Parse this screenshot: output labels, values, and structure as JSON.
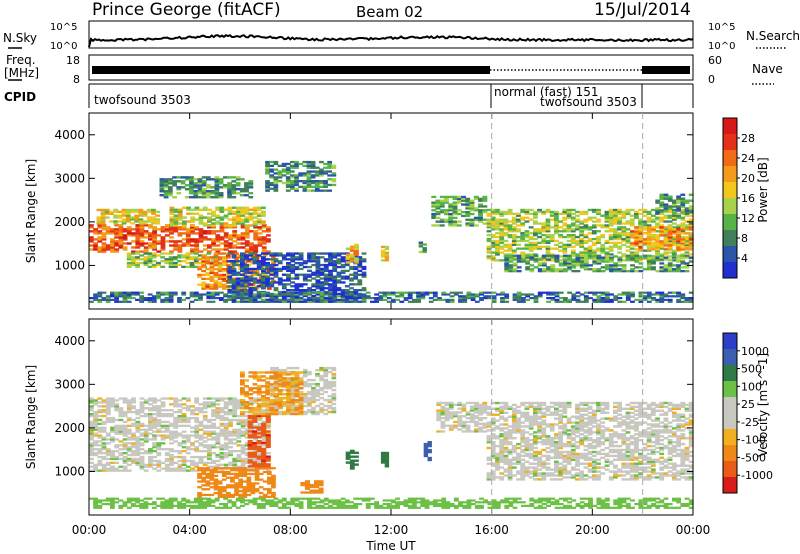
{
  "header": {
    "station": "Prince George (fitACF)",
    "beam": "Beam 02",
    "date": "15/Jul/2014"
  },
  "strip_panels": {
    "nsky": {
      "label": "N.Sky",
      "ticks": [
        "10^5",
        "10^0"
      ],
      "right_label": "N.Search",
      "right_ticks": [
        "10^5",
        "10^0"
      ]
    },
    "freq": {
      "label_line1": "Freq.",
      "label_line2": "[MHz]",
      "ticks": [
        "18",
        "8"
      ],
      "right_label": "Nave",
      "right_ticks": [
        "60",
        "0"
      ]
    },
    "cpid": {
      "label": "CPID",
      "segments": [
        {
          "start_hr": 0,
          "end_hr": 16,
          "label": "twofsound 3503"
        },
        {
          "start_hr": 16,
          "end_hr": 22,
          "label": "normal (fast) 151"
        },
        {
          "start_hr": 22,
          "end_hr": 24,
          "label": "twofsound 3503"
        }
      ]
    }
  },
  "colors": {
    "power_scale": [
      "#1f2fd0",
      "#2a55a8",
      "#3f7f5a",
      "#57b347",
      "#a6d34b",
      "#f2c61d",
      "#f39c1a",
      "#f06a18",
      "#e33018",
      "#d81818"
    ],
    "velocity_scale": [
      "#2b3fc8",
      "#3a5fb0",
      "#2f7a45",
      "#6cc046",
      "#c8c8c0",
      "#c8c8c0",
      "#f0b020",
      "#f08818",
      "#e85c18",
      "#d81c1c"
    ]
  },
  "chart_data": [
    {
      "type": "heatmap",
      "name": "power-panel",
      "ylabel": "Slant Range [km]",
      "yticks": [
        "1000",
        "2000",
        "3000",
        "4000"
      ],
      "ylim": [
        0,
        4500
      ],
      "xlim": [
        0,
        24
      ],
      "colorbar": {
        "label": "Power [dB]",
        "ticks": [
          "4",
          "8",
          "12",
          "16",
          "20",
          "24",
          "28"
        ],
        "range": [
          0,
          30
        ]
      },
      "blobs": [
        {
          "t0": 0.0,
          "t1": 7.2,
          "r0": 1300,
          "r1": 1950,
          "v": 23
        },
        {
          "t0": 0.3,
          "t1": 2.8,
          "r0": 1950,
          "r1": 2300,
          "v": 16
        },
        {
          "t0": 1.5,
          "t1": 5.5,
          "r0": 950,
          "r1": 1300,
          "v": 12
        },
        {
          "t0": 4.3,
          "t1": 7.4,
          "r0": 450,
          "r1": 1300,
          "v": 20
        },
        {
          "t0": 3.2,
          "t1": 7.0,
          "r0": 1900,
          "r1": 2350,
          "v": 14
        },
        {
          "t0": 2.8,
          "t1": 6.5,
          "r0": 2550,
          "r1": 3050,
          "v": 9
        },
        {
          "t0": 7.0,
          "t1": 9.8,
          "r0": 2700,
          "r1": 3400,
          "v": 8
        },
        {
          "t0": 5.5,
          "t1": 11.0,
          "r0": 150,
          "r1": 1300,
          "v": 4
        },
        {
          "t0": 10.2,
          "t1": 10.7,
          "r0": 1050,
          "r1": 1500,
          "v": 18
        },
        {
          "t0": 11.6,
          "t1": 11.9,
          "r0": 1100,
          "r1": 1450,
          "v": 16
        },
        {
          "t0": 13.1,
          "t1": 13.4,
          "r0": 1250,
          "r1": 1550,
          "v": 8
        },
        {
          "t0": 13.6,
          "t1": 15.8,
          "r0": 1900,
          "r1": 2600,
          "v": 10
        },
        {
          "t0": 15.8,
          "t1": 24.0,
          "r0": 1100,
          "r1": 2300,
          "v": 13
        },
        {
          "t0": 16.5,
          "t1": 24.0,
          "r0": 850,
          "r1": 1250,
          "v": 9
        },
        {
          "t0": 21.5,
          "t1": 24.0,
          "r0": 1350,
          "r1": 1900,
          "v": 20
        },
        {
          "t0": 22.5,
          "t1": 24.0,
          "r0": 2200,
          "r1": 2650,
          "v": 9
        },
        {
          "t0": 0.0,
          "t1": 24.0,
          "r0": 150,
          "r1": 400,
          "v": 6
        }
      ]
    },
    {
      "type": "heatmap",
      "name": "velocity-panel",
      "ylabel": "Slant Range [km]",
      "yticks": [
        "1000",
        "2000",
        "3000",
        "4000"
      ],
      "ylim": [
        0,
        4500
      ],
      "xlim": [
        0,
        24
      ],
      "xticks": [
        "00:00",
        "04:00",
        "08:00",
        "12:00",
        "16:00",
        "20:00",
        "00:00"
      ],
      "xlabel": "Time UT",
      "colorbar": {
        "label": "Velocity [m s^-1]",
        "ticks": [
          "1000",
          "500",
          "100",
          "25",
          "-25",
          "-100",
          "-500",
          "-1000"
        ]
      },
      "blobs": [
        {
          "t0": 0.0,
          "t1": 7.2,
          "r0": 1000,
          "r1": 2700,
          "v": 0
        },
        {
          "t0": 7.2,
          "t1": 9.8,
          "r0": 2300,
          "r1": 3400,
          "v": 0
        },
        {
          "t0": 4.3,
          "t1": 7.4,
          "r0": 400,
          "r1": 1100,
          "v": -150
        },
        {
          "t0": 6.3,
          "t1": 7.2,
          "r0": 1100,
          "r1": 2300,
          "v": -800
        },
        {
          "t0": 6.0,
          "t1": 8.5,
          "r0": 2300,
          "r1": 3300,
          "v": -100
        },
        {
          "t0": 8.4,
          "t1": 9.3,
          "r0": 500,
          "r1": 800,
          "v": -200
        },
        {
          "t0": 10.2,
          "t1": 10.7,
          "r0": 1050,
          "r1": 1500,
          "v": 150
        },
        {
          "t0": 11.6,
          "t1": 11.9,
          "r0": 1100,
          "r1": 1450,
          "v": 200
        },
        {
          "t0": 13.3,
          "t1": 13.6,
          "r0": 1200,
          "r1": 1700,
          "v": 700
        },
        {
          "t0": 13.8,
          "t1": 15.8,
          "r0": 1900,
          "r1": 2600,
          "v": 0
        },
        {
          "t0": 15.8,
          "t1": 24.0,
          "r0": 800,
          "r1": 2600,
          "v": 0
        },
        {
          "t0": 0.0,
          "t1": 24.0,
          "r0": 150,
          "r1": 400,
          "v": 60
        }
      ]
    }
  ]
}
